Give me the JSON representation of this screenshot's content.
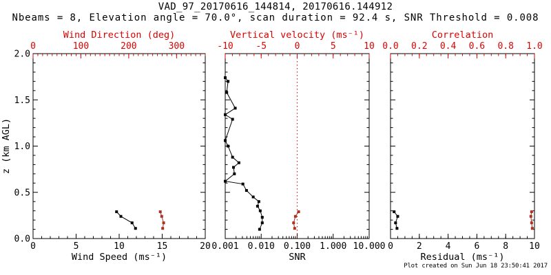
{
  "header": {},
  "footer": {
    "created": "Plot created on Sun Jun 18 23:50:41 2017"
  },
  "colors": {
    "axis_red": "#dd0000",
    "data_red": "#aa3326",
    "black": "#000000",
    "background": "#ffffff"
  },
  "chart_data": {
    "type": "line",
    "title": "VAD_97_20170616_144814, 20170616.144912",
    "subtitle": "Nbeams = 8, Elevation angle = 70.0°, scan duration = 92.4 s, SNR Threshold = 0.008",
    "grid": "off",
    "legend": "none",
    "y_axis": {
      "label": "z (km AGL)",
      "min": 0.0,
      "max": 2.0,
      "ticks": [
        0.0,
        0.5,
        1.0,
        1.5,
        2.0
      ],
      "tick_labels": [
        "0.0",
        "0.5",
        "1.0",
        "1.5",
        "2.0"
      ],
      "minor_step": 0.1
    },
    "panels": [
      {
        "id": "wind",
        "xlabel": "Wind Speed (ms⁻¹)",
        "x_scale": "linear",
        "x_range": [
          0,
          20
        ],
        "x_ticks": [
          0,
          5,
          10,
          15,
          20
        ],
        "x_tick_labels": [
          "0",
          "5",
          "10",
          "15",
          "20"
        ],
        "x_minor": 1,
        "top_label": "Wind Direction (deg)",
        "top_range": [
          0,
          360
        ],
        "top_ticks": [
          0,
          100,
          200,
          300
        ],
        "top_tick_labels": [
          "0",
          "100",
          "200",
          "300"
        ],
        "top_minor": 10,
        "series": [
          {
            "name": "wind-speed",
            "axis": "bottom",
            "color": "black",
            "points": [
              {
                "x": 9.7,
                "z": 0.29
              },
              {
                "x": 10.2,
                "z": 0.24
              },
              {
                "x": 11.5,
                "z": 0.17
              },
              {
                "x": 11.9,
                "z": 0.11
              }
            ]
          },
          {
            "name": "wind-direction",
            "axis": "top",
            "color": "red",
            "points": [
              {
                "x": 266,
                "z": 0.29
              },
              {
                "x": 269,
                "z": 0.24
              },
              {
                "x": 273,
                "z": 0.17
              },
              {
                "x": 271,
                "z": 0.11
              }
            ]
          }
        ]
      },
      {
        "id": "snr",
        "xlabel": "SNR",
        "x_scale": "log",
        "x_range": [
          0.001,
          10
        ],
        "x_ticks": [
          0.001,
          0.01,
          0.1,
          1,
          10
        ],
        "x_tick_labels": [
          "0.001",
          "0.010",
          "0.100",
          "1.000",
          "10.000"
        ],
        "top_label": "Vertical velocity (ms⁻¹)",
        "top_range": [
          -10,
          10
        ],
        "top_ticks": [
          -10,
          -5,
          0,
          5,
          10
        ],
        "top_tick_labels": [
          "-10",
          "-5",
          "0",
          "5",
          "10"
        ],
        "top_minor": 1,
        "ref_line": {
          "axis": "top",
          "value": 0,
          "color": "red",
          "style": "dotted"
        },
        "series": [
          {
            "name": "snr",
            "axis": "bottom",
            "color": "black",
            "points": [
              {
                "x": 0.001,
                "z": 1.74
              },
              {
                "x": 0.0012,
                "z": 1.7
              },
              {
                "x": 0.0011,
                "z": 1.58
              },
              {
                "x": 0.0019,
                "z": 1.41
              },
              {
                "x": 0.001,
                "z": 1.34
              },
              {
                "x": 0.0016,
                "z": 1.29
              },
              {
                "x": 0.001,
                "z": 1.06
              },
              {
                "x": 0.0012,
                "z": 1.0
              },
              {
                "x": 0.0016,
                "z": 0.88
              },
              {
                "x": 0.0024,
                "z": 0.82
              },
              {
                "x": 0.0017,
                "z": 0.77
              },
              {
                "x": 0.0018,
                "z": 0.7
              },
              {
                "x": 0.001,
                "z": 0.62
              },
              {
                "x": 0.0031,
                "z": 0.59
              },
              {
                "x": 0.0039,
                "z": 0.52
              },
              {
                "x": 0.006,
                "z": 0.45
              },
              {
                "x": 0.0086,
                "z": 0.4
              },
              {
                "x": 0.0079,
                "z": 0.35
              },
              {
                "x": 0.0094,
                "z": 0.3
              },
              {
                "x": 0.0107,
                "z": 0.23
              },
              {
                "x": 0.0107,
                "z": 0.17
              },
              {
                "x": 0.009,
                "z": 0.1
              }
            ]
          },
          {
            "name": "vertical-velocity",
            "axis": "top",
            "color": "red",
            "points": [
              {
                "x": 0.2,
                "z": 0.29
              },
              {
                "x": -0.25,
                "z": 0.24
              },
              {
                "x": -0.5,
                "z": 0.17
              },
              {
                "x": -0.35,
                "z": 0.11
              }
            ]
          }
        ]
      },
      {
        "id": "residual",
        "xlabel": "Residual (ms⁻¹)",
        "x_scale": "linear",
        "x_range": [
          0,
          10
        ],
        "x_ticks": [
          0,
          2,
          4,
          6,
          8,
          10
        ],
        "x_tick_labels": [
          "0",
          "2",
          "4",
          "6",
          "8",
          "10"
        ],
        "x_minor": 0.5,
        "top_label": "Correlation",
        "top_range": [
          0,
          1
        ],
        "top_ticks": [
          0,
          0.2,
          0.4,
          0.6,
          0.8,
          1
        ],
        "top_tick_labels": [
          "0.0",
          "0.2",
          "0.4",
          "0.6",
          "0.8",
          "1.0"
        ],
        "top_minor": 0.05,
        "series": [
          {
            "name": "residual",
            "axis": "bottom",
            "color": "black",
            "points": [
              {
                "x": 0.25,
                "z": 0.29
              },
              {
                "x": 0.5,
                "z": 0.24
              },
              {
                "x": 0.35,
                "z": 0.17
              },
              {
                "x": 0.45,
                "z": 0.11
              }
            ]
          },
          {
            "name": "correlation",
            "axis": "top",
            "color": "red",
            "points": [
              {
                "x": 0.98,
                "z": 0.29
              },
              {
                "x": 0.975,
                "z": 0.24
              },
              {
                "x": 0.98,
                "z": 0.17
              },
              {
                "x": 0.985,
                "z": 0.11
              }
            ]
          }
        ]
      }
    ]
  }
}
